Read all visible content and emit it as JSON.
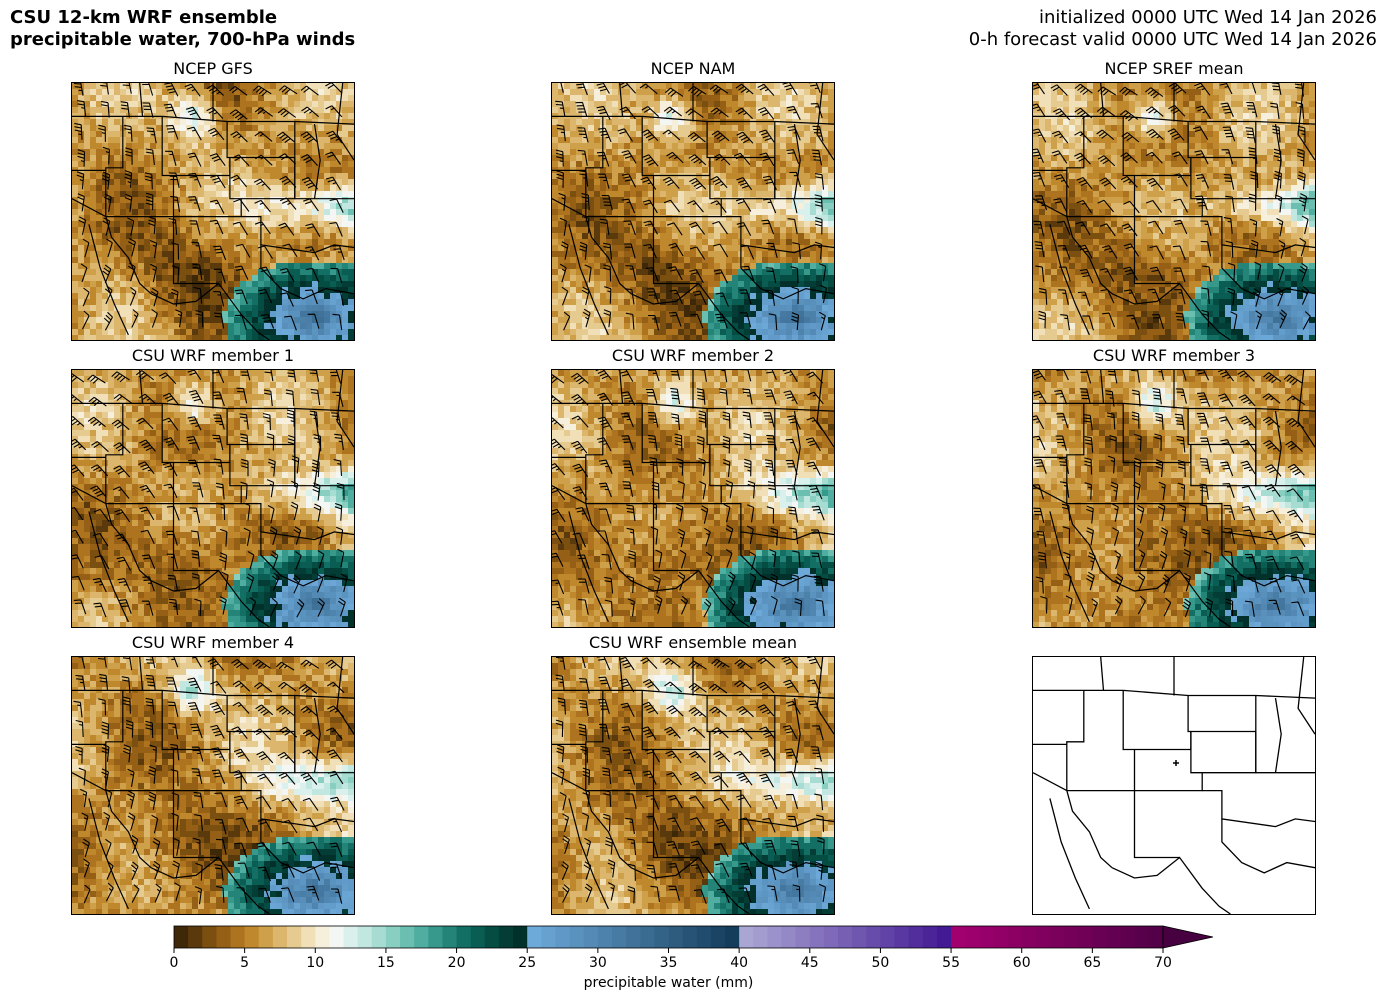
{
  "header": {
    "title_line1": "CSU 12-km WRF ensemble",
    "title_line2": "precipitable water, 700-hPa winds",
    "init_text": "initialized 0000 UTC Wed 14 Jan 2026",
    "valid_text": "0-h forecast valid 0000 UTC Wed 14 Jan 2026"
  },
  "panels": [
    {
      "title": "NCEP GFS",
      "type": "field"
    },
    {
      "title": "NCEP NAM",
      "type": "field"
    },
    {
      "title": "NCEP SREF mean",
      "type": "field"
    },
    {
      "title": "CSU WRF member 1",
      "type": "field"
    },
    {
      "title": "CSU WRF member 2",
      "type": "field"
    },
    {
      "title": "CSU WRF member 3",
      "type": "field"
    },
    {
      "title": "CSU WRF member 4",
      "type": "field"
    },
    {
      "title": "CSU WRF ensemble mean",
      "type": "field"
    },
    {
      "title": "",
      "type": "blank-map"
    }
  ],
  "colorbar": {
    "label": "precipitable water (mm)",
    "ticks": [
      0,
      5,
      10,
      15,
      20,
      25,
      30,
      35,
      40,
      45,
      50,
      55,
      60,
      65,
      70
    ],
    "min": 0,
    "max": 70,
    "step": 1,
    "extend": "max"
  }
}
